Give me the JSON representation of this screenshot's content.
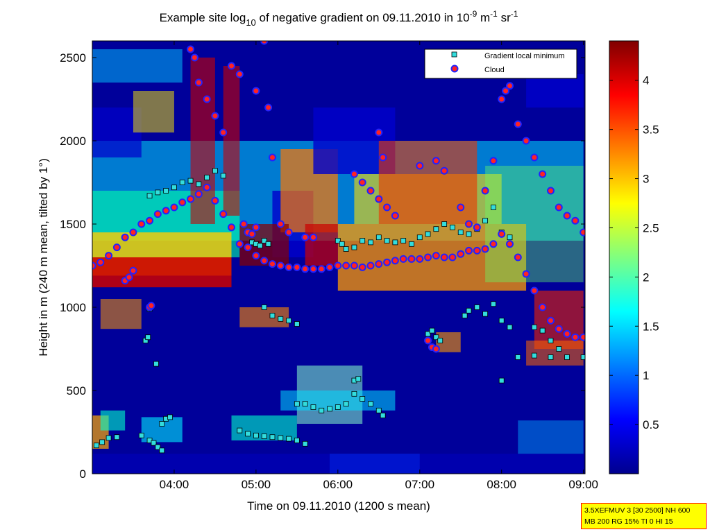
{
  "chart_data": {
    "type": "heatmap",
    "title": {
      "prefix": "Example site log",
      "log_sub": "10",
      "middle": " of negative gradient on 09.11.2010 in 10",
      "exp1": "-9",
      "unit1": " m",
      "exp2": "-1",
      "unit2": " sr",
      "exp3": "-1"
    },
    "xlabel": "Time on 09.11.2010 (1200 s mean)",
    "ylabel": "Height in m (240 m mean, tilted by 1°)",
    "x_ticks": [
      "04:00",
      "05:00",
      "06:00",
      "07:00",
      "08:00",
      "09:00"
    ],
    "x_tick_hours": [
      4,
      5,
      6,
      7,
      8,
      9
    ],
    "xlim_hours": [
      3.0,
      9.02
    ],
    "y_ticks": [
      0,
      500,
      1000,
      1500,
      2000,
      2500
    ],
    "ylim": [
      0,
      2600
    ],
    "colorbar_ticks": [
      0.5,
      1,
      1.5,
      2,
      2.5,
      3,
      3.5,
      4
    ],
    "clim": [
      0,
      4.4
    ],
    "colormap": "jet",
    "legend_position": "top-right",
    "series": [
      {
        "name": "Gradient local minimum",
        "marker": "square",
        "color": "#33dddd",
        "points": [
          [
            3.05,
            170
          ],
          [
            3.12,
            190
          ],
          [
            3.2,
            215
          ],
          [
            3.3,
            220
          ],
          [
            3.6,
            230
          ],
          [
            3.7,
            200
          ],
          [
            3.75,
            185
          ],
          [
            3.8,
            160
          ],
          [
            3.85,
            140
          ],
          [
            3.65,
            800
          ],
          [
            3.68,
            820
          ],
          [
            3.7,
            990
          ],
          [
            3.72,
            1010
          ],
          [
            3.78,
            660
          ],
          [
            3.7,
            1670
          ],
          [
            3.8,
            1690
          ],
          [
            3.9,
            1700
          ],
          [
            4.0,
            1720
          ],
          [
            4.1,
            1750
          ],
          [
            4.2,
            1760
          ],
          [
            4.3,
            1740
          ],
          [
            4.4,
            1780
          ],
          [
            4.5,
            1820
          ],
          [
            4.6,
            1790
          ],
          [
            3.85,
            300
          ],
          [
            3.9,
            330
          ],
          [
            3.95,
            340
          ],
          [
            4.95,
            1390
          ],
          [
            5.0,
            1380
          ],
          [
            5.05,
            1370
          ],
          [
            5.1,
            1400
          ],
          [
            5.15,
            1380
          ],
          [
            4.8,
            260
          ],
          [
            4.9,
            240
          ],
          [
            5.0,
            230
          ],
          [
            5.1,
            225
          ],
          [
            5.2,
            220
          ],
          [
            5.3,
            215
          ],
          [
            5.4,
            210
          ],
          [
            5.5,
            200
          ],
          [
            5.6,
            180
          ],
          [
            5.1,
            1000
          ],
          [
            5.2,
            950
          ],
          [
            5.3,
            930
          ],
          [
            5.4,
            920
          ],
          [
            5.5,
            900
          ],
          [
            5.5,
            420
          ],
          [
            5.6,
            420
          ],
          [
            5.7,
            400
          ],
          [
            5.8,
            380
          ],
          [
            5.9,
            390
          ],
          [
            6.0,
            400
          ],
          [
            6.1,
            420
          ],
          [
            6.2,
            480
          ],
          [
            6.3,
            450
          ],
          [
            6.4,
            420
          ],
          [
            6.5,
            380
          ],
          [
            6.55,
            350
          ],
          [
            6.2,
            560
          ],
          [
            6.25,
            570
          ],
          [
            6.0,
            1400
          ],
          [
            6.05,
            1380
          ],
          [
            6.1,
            1350
          ],
          [
            6.2,
            1360
          ],
          [
            6.3,
            1400
          ],
          [
            6.4,
            1390
          ],
          [
            6.5,
            1420
          ],
          [
            6.6,
            1400
          ],
          [
            6.7,
            1390
          ],
          [
            6.8,
            1400
          ],
          [
            6.9,
            1380
          ],
          [
            7.0,
            1420
          ],
          [
            7.1,
            1440
          ],
          [
            7.2,
            1470
          ],
          [
            7.3,
            1500
          ],
          [
            7.4,
            1480
          ],
          [
            7.5,
            1450
          ],
          [
            7.6,
            1440
          ],
          [
            7.7,
            1470
          ],
          [
            7.8,
            1520
          ],
          [
            7.9,
            1600
          ],
          [
            8.0,
            1450
          ],
          [
            8.1,
            1420
          ],
          [
            7.1,
            840
          ],
          [
            7.15,
            860
          ],
          [
            7.2,
            820
          ],
          [
            7.25,
            800
          ],
          [
            7.55,
            950
          ],
          [
            7.6,
            980
          ],
          [
            7.7,
            1000
          ],
          [
            7.8,
            960
          ],
          [
            7.9,
            1020
          ],
          [
            8.0,
            920
          ],
          [
            8.1,
            880
          ],
          [
            8.0,
            560
          ],
          [
            8.2,
            700
          ],
          [
            8.4,
            710
          ],
          [
            8.6,
            700
          ],
          [
            8.8,
            700
          ],
          [
            9.0,
            700
          ],
          [
            8.4,
            880
          ],
          [
            8.5,
            860
          ],
          [
            8.6,
            800
          ],
          [
            8.7,
            750
          ]
        ]
      },
      {
        "name": "Cloud",
        "marker": "circle",
        "color": "#ff2222",
        "edge_color": "#2222ff",
        "points": [
          [
            3.0,
            1250
          ],
          [
            3.1,
            1270
          ],
          [
            3.2,
            1310
          ],
          [
            3.3,
            1360
          ],
          [
            3.4,
            1420
          ],
          [
            3.5,
            1450
          ],
          [
            3.6,
            1500
          ],
          [
            3.7,
            1520
          ],
          [
            3.8,
            1560
          ],
          [
            3.9,
            1580
          ],
          [
            4.0,
            1600
          ],
          [
            4.1,
            1630
          ],
          [
            4.2,
            1650
          ],
          [
            4.3,
            1680
          ],
          [
            4.4,
            1720
          ],
          [
            4.5,
            1640
          ],
          [
            4.6,
            1560
          ],
          [
            4.7,
            1480
          ],
          [
            4.8,
            1380
          ],
          [
            4.9,
            1360
          ],
          [
            5.0,
            1310
          ],
          [
            5.1,
            1280
          ],
          [
            5.2,
            1260
          ],
          [
            5.3,
            1250
          ],
          [
            5.4,
            1240
          ],
          [
            5.5,
            1240
          ],
          [
            5.6,
            1230
          ],
          [
            5.7,
            1230
          ],
          [
            5.8,
            1230
          ],
          [
            5.9,
            1240
          ],
          [
            6.0,
            1250
          ],
          [
            6.1,
            1250
          ],
          [
            6.2,
            1250
          ],
          [
            6.3,
            1240
          ],
          [
            6.4,
            1250
          ],
          [
            6.5,
            1260
          ],
          [
            6.6,
            1270
          ],
          [
            6.7,
            1280
          ],
          [
            6.8,
            1290
          ],
          [
            6.9,
            1290
          ],
          [
            7.0,
            1290
          ],
          [
            7.1,
            1300
          ],
          [
            7.2,
            1310
          ],
          [
            7.3,
            1300
          ],
          [
            7.4,
            1300
          ],
          [
            7.5,
            1320
          ],
          [
            7.6,
            1340
          ],
          [
            7.7,
            1340
          ],
          [
            7.8,
            1350
          ],
          [
            7.9,
            1380
          ],
          [
            8.0,
            1440
          ],
          [
            8.1,
            1380
          ],
          [
            8.2,
            1300
          ],
          [
            8.3,
            1200
          ],
          [
            8.4,
            1100
          ],
          [
            8.5,
            1000
          ],
          [
            8.6,
            920
          ],
          [
            8.7,
            870
          ],
          [
            8.8,
            840
          ],
          [
            8.9,
            820
          ],
          [
            9.0,
            820
          ],
          [
            3.4,
            1160
          ],
          [
            3.45,
            1180
          ],
          [
            3.5,
            1220
          ],
          [
            3.7,
            1000
          ],
          [
            3.72,
            1010
          ],
          [
            4.2,
            2550
          ],
          [
            4.25,
            2500
          ],
          [
            4.3,
            2350
          ],
          [
            4.4,
            2250
          ],
          [
            4.5,
            2150
          ],
          [
            4.6,
            2050
          ],
          [
            4.7,
            2450
          ],
          [
            4.8,
            2400
          ],
          [
            5.0,
            2300
          ],
          [
            5.1,
            2600
          ],
          [
            5.15,
            2200
          ],
          [
            5.2,
            1900
          ],
          [
            4.85,
            1500
          ],
          [
            4.9,
            1450
          ],
          [
            4.95,
            1440
          ],
          [
            5.0,
            1480
          ],
          [
            5.3,
            1500
          ],
          [
            5.4,
            1450
          ],
          [
            5.6,
            1420
          ],
          [
            5.7,
            1420
          ],
          [
            6.2,
            1800
          ],
          [
            6.3,
            1750
          ],
          [
            6.4,
            1700
          ],
          [
            6.5,
            1650
          ],
          [
            6.6,
            1600
          ],
          [
            6.7,
            1550
          ],
          [
            6.5,
            2050
          ],
          [
            6.55,
            1900
          ],
          [
            7.0,
            1850
          ],
          [
            7.2,
            1880
          ],
          [
            7.3,
            1820
          ],
          [
            7.5,
            1600
          ],
          [
            7.6,
            1500
          ],
          [
            7.7,
            1480
          ],
          [
            7.8,
            1700
          ],
          [
            7.9,
            1880
          ],
          [
            8.0,
            2250
          ],
          [
            8.05,
            2300
          ],
          [
            8.1,
            2330
          ],
          [
            8.2,
            2100
          ],
          [
            8.3,
            2000
          ],
          [
            8.4,
            1900
          ],
          [
            8.5,
            1800
          ],
          [
            8.6,
            1700
          ],
          [
            8.7,
            1600
          ],
          [
            8.8,
            1550
          ],
          [
            8.9,
            1520
          ],
          [
            9.0,
            1450
          ],
          [
            7.1,
            800
          ],
          [
            7.15,
            760
          ],
          [
            7.2,
            750
          ]
        ]
      }
    ]
  },
  "info_box": {
    "line1": "3.5XEFMUV 3 [30 2500] NH 600",
    "line2": "MB 200 RG 15% TI 0 HI 15"
  },
  "legend": {
    "item1": "Gradient local minimum",
    "item2": "Cloud"
  }
}
